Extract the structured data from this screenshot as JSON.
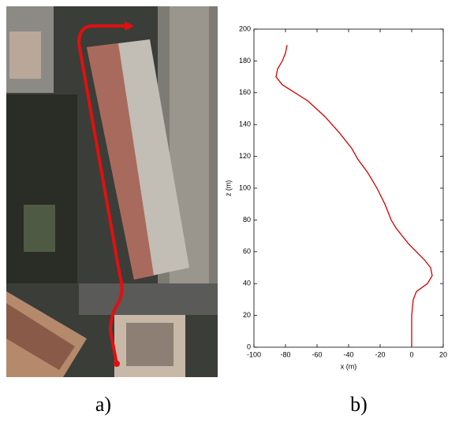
{
  "captions": [
    "a)",
    "b)"
  ],
  "chart_data": {
    "type": "line",
    "xlabel": "x (m)",
    "ylabel": "z (m)",
    "xlim": [
      -100,
      20
    ],
    "xticks": [
      -100,
      -80,
      -60,
      -40,
      -20,
      0,
      20
    ],
    "ylim": [
      0,
      200
    ],
    "yticks": [
      0,
      20,
      40,
      60,
      80,
      100,
      120,
      140,
      160,
      180,
      200
    ],
    "series": [
      {
        "color": "#d40000",
        "x": [
          0,
          0,
          0,
          1,
          3,
          10,
          13,
          12,
          8,
          3,
          -2,
          -6,
          -10,
          -13,
          -17,
          -22,
          -28,
          -34,
          -38,
          -46,
          -55,
          -66,
          -74,
          -82,
          -86,
          -85,
          -82,
          -80,
          -79
        ],
        "values": [
          0,
          10,
          20,
          30,
          35,
          40,
          45,
          50,
          55,
          60,
          65,
          70,
          75,
          80,
          90,
          100,
          110,
          118,
          125,
          135,
          145,
          155,
          160,
          165,
          170,
          175,
          180,
          185,
          190
        ]
      }
    ]
  }
}
